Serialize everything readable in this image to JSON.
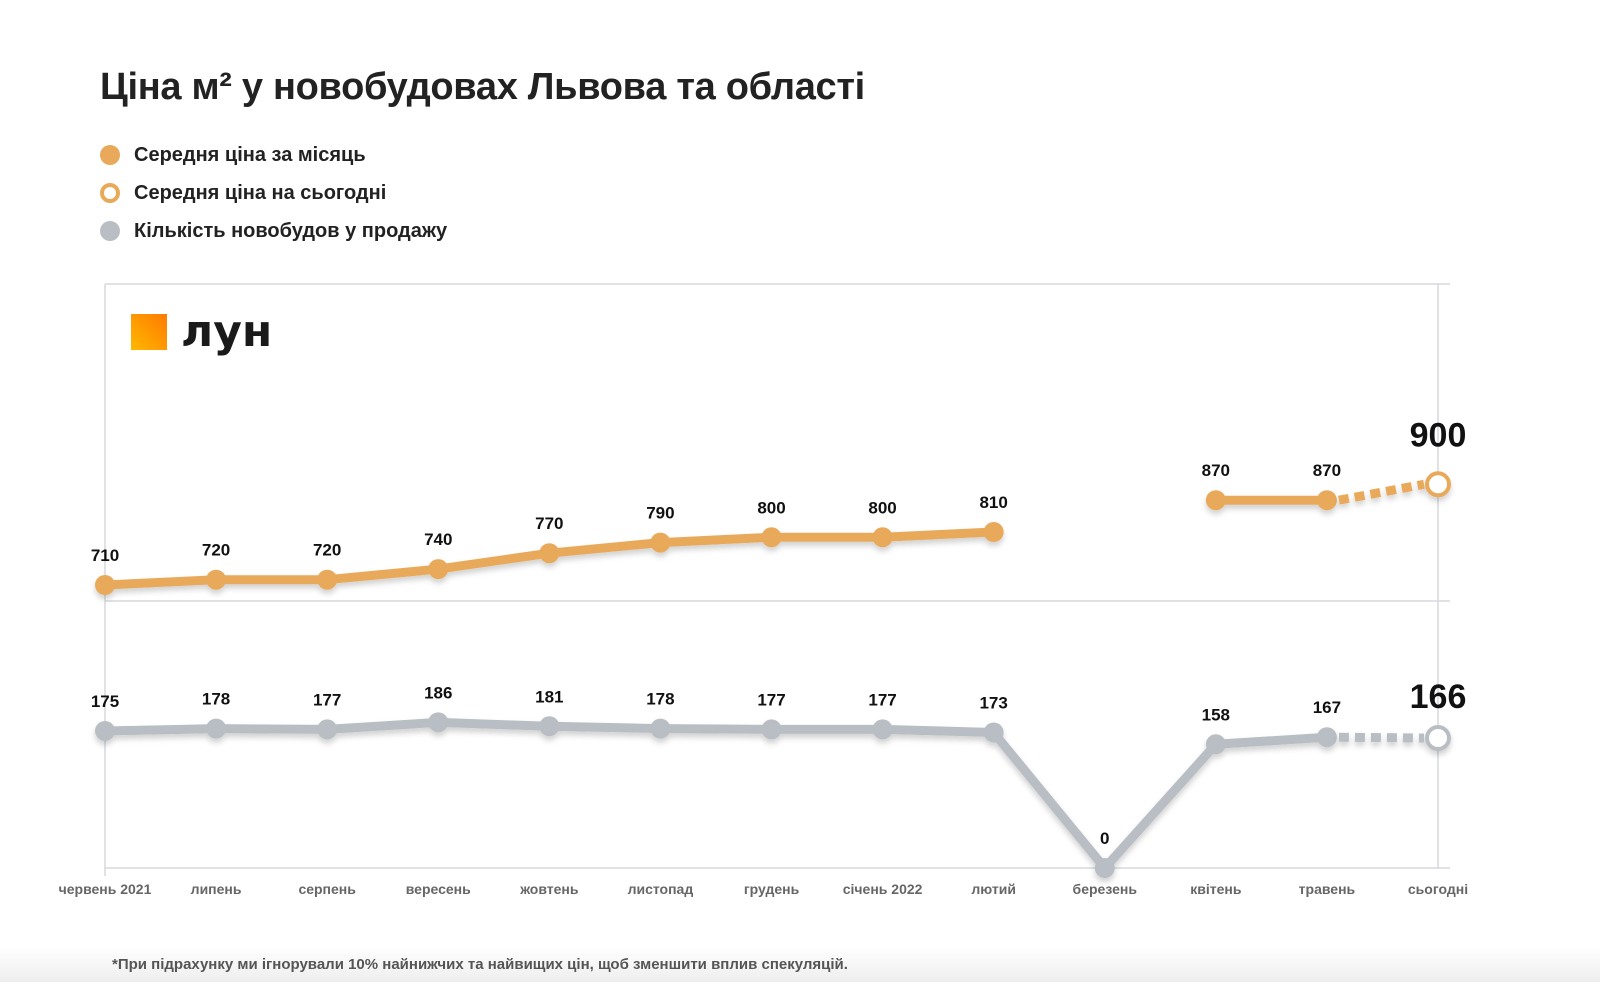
{
  "chart_data": {
    "type": "line",
    "title": "Ціна м² у новобудовах Львова та області",
    "categories": [
      "червень 2021",
      "липень",
      "серпень",
      "вересень",
      "жовтень",
      "листопад",
      "грудень",
      "січень 2022",
      "лютий",
      "березень",
      "квітень",
      "травень",
      "сьогодні"
    ],
    "series": [
      {
        "name": "Середня ціна за місяць",
        "color": "#E8AA5A",
        "values": [
          710,
          720,
          720,
          740,
          770,
          790,
          800,
          800,
          810,
          null,
          870,
          870,
          null
        ]
      },
      {
        "name": "Середня ціна на сьогодні",
        "color": "#E8AA5A",
        "values": [
          null,
          null,
          null,
          null,
          null,
          null,
          null,
          null,
          null,
          null,
          null,
          870,
          900
        ],
        "style": "dashed, hollow marker"
      },
      {
        "name": "Кількість новобудов у продажу",
        "color": "#B8BEC3",
        "values": [
          175,
          178,
          177,
          186,
          181,
          178,
          177,
          177,
          173,
          0,
          158,
          167,
          166
        ]
      }
    ],
    "grid": true,
    "legend": "top-left",
    "footnote": "*При підрахунку ми ігнорували 10% найнижчих та найвищих цін, щоб зменшити вплив спекуляцій.",
    "logo_text": "лун"
  }
}
